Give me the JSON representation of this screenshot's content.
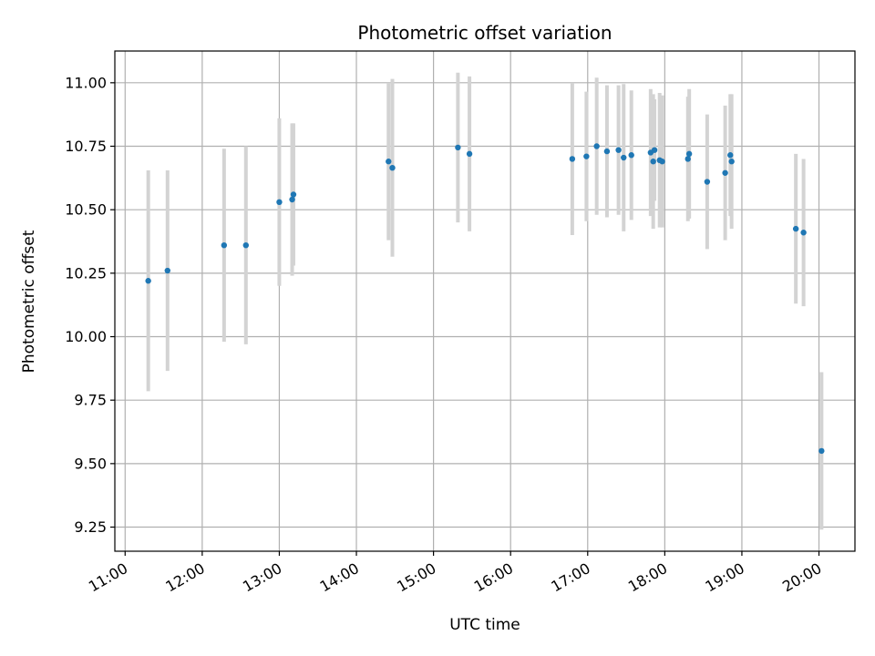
{
  "chart_data": {
    "type": "scatter",
    "title": "Photometric offset variation",
    "xlabel": "UTC time",
    "ylabel": "Photometric offset",
    "x_ticks": [
      "11:00",
      "12:00",
      "13:00",
      "14:00",
      "15:00",
      "16:00",
      "17:00",
      "18:00",
      "19:00",
      "20:00"
    ],
    "xlim": [
      "10:52",
      "20:28"
    ],
    "y_ticks": [
      "9.25",
      "9.50",
      "9.75",
      "10.00",
      "10.25",
      "10.50",
      "10.75",
      "11.00"
    ],
    "ylim": [
      9.155,
      11.125
    ],
    "grid": true,
    "legend": "none",
    "colors": {
      "point": "#1f77b4",
      "errorbar": "#d3d3d3",
      "grid": "#b0b0b0"
    },
    "points": [
      {
        "x": "11:18",
        "y": 10.22,
        "err": 0.435
      },
      {
        "x": "11:33",
        "y": 10.26,
        "err": 0.395
      },
      {
        "x": "12:17",
        "y": 10.36,
        "err": 0.38
      },
      {
        "x": "12:34",
        "y": 10.36,
        "err": 0.39
      },
      {
        "x": "13:00",
        "y": 10.53,
        "err": 0.33
      },
      {
        "x": "13:10",
        "y": 10.54,
        "err": 0.3
      },
      {
        "x": "13:11",
        "y": 10.56,
        "err": 0.28
      },
      {
        "x": "14:25",
        "y": 10.69,
        "err": 0.31
      },
      {
        "x": "14:28",
        "y": 10.665,
        "err": 0.35
      },
      {
        "x": "15:19",
        "y": 10.745,
        "err": 0.295
      },
      {
        "x": "15:28",
        "y": 10.72,
        "err": 0.305
      },
      {
        "x": "16:48",
        "y": 10.7,
        "err": 0.3
      },
      {
        "x": "16:59",
        "y": 10.71,
        "err": 0.255
      },
      {
        "x": "17:07",
        "y": 10.75,
        "err": 0.27
      },
      {
        "x": "17:15",
        "y": 10.73,
        "err": 0.26
      },
      {
        "x": "17:24",
        "y": 10.735,
        "err": 0.255
      },
      {
        "x": "17:28",
        "y": 10.705,
        "err": 0.29
      },
      {
        "x": "17:34",
        "y": 10.715,
        "err": 0.255
      },
      {
        "x": "17:49",
        "y": 10.725,
        "err": 0.25
      },
      {
        "x": "17:51",
        "y": 10.69,
        "err": 0.265
      },
      {
        "x": "17:52",
        "y": 10.735,
        "err": 0.2
      },
      {
        "x": "17:56",
        "y": 10.695,
        "err": 0.265
      },
      {
        "x": "17:58",
        "y": 10.69,
        "err": 0.26
      },
      {
        "x": "18:18",
        "y": 10.7,
        "err": 0.245
      },
      {
        "x": "18:19",
        "y": 10.72,
        "err": 0.255
      },
      {
        "x": "18:33",
        "y": 10.61,
        "err": 0.265
      },
      {
        "x": "18:47",
        "y": 10.645,
        "err": 0.265
      },
      {
        "x": "18:51",
        "y": 10.715,
        "err": 0.24
      },
      {
        "x": "18:52",
        "y": 10.69,
        "err": 0.265
      },
      {
        "x": "19:42",
        "y": 10.425,
        "err": 0.295
      },
      {
        "x": "19:48",
        "y": 10.41,
        "err": 0.29
      },
      {
        "x": "20:02",
        "y": 9.55,
        "err": 0.31
      }
    ]
  }
}
